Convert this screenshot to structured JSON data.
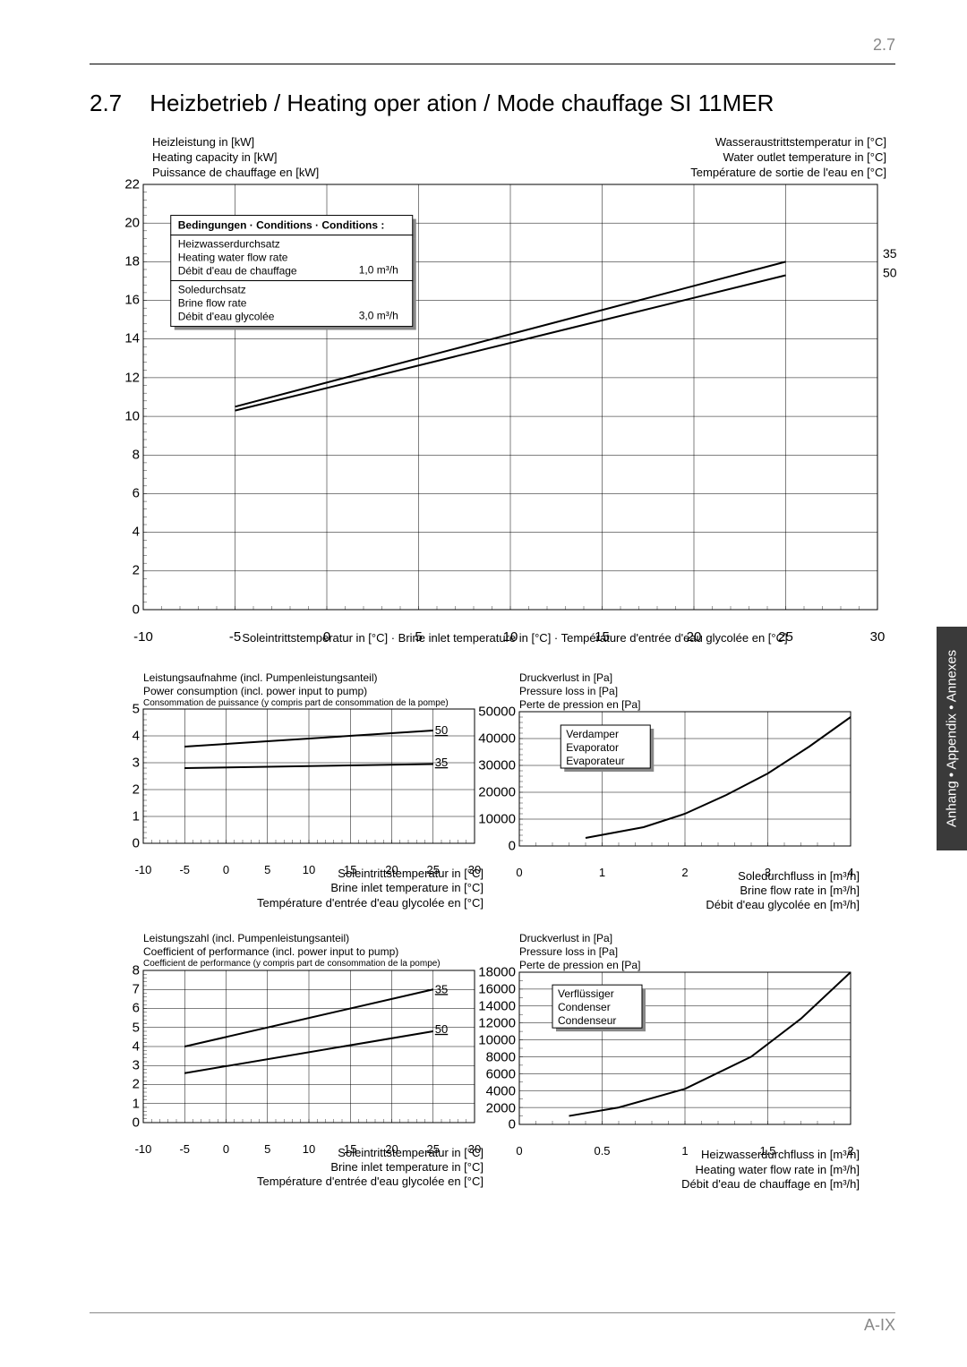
{
  "header_section_number": "2.7",
  "footer_page_number": "A-IX",
  "side_tab": "Anhang • Appendix • Annexes",
  "section": {
    "number": "2.7",
    "title": "Heizbetrieb / Heating oper   ation / Mode chauffage SI 11MER"
  },
  "big_chart": {
    "y_label_left": [
      "Heizleistung in [kW]",
      "Heating capacity in [kW]",
      "Puissance de chauffage en [kW]"
    ],
    "y_label_right": [
      "Wasseraustrittstemperatur in [°C]",
      "Water outlet temperature in [°C]",
      "Température de sortie de l'eau en [°C]"
    ],
    "x_label": "Soleintrittstemperatur in [°C] · Brine inlet temperature in [°C] · Température d'entrée d'eau glycolée en [°C]",
    "ylim": [
      0,
      22
    ],
    "ytick_step": 2,
    "xlim": [
      -10,
      30
    ],
    "xtick_step": 5,
    "series": [
      {
        "label": "35",
        "points": [
          [
            -5,
            10.5
          ],
          [
            25,
            18
          ]
        ]
      },
      {
        "label": "50",
        "points": [
          [
            -5,
            10.3
          ],
          [
            25,
            17.3
          ]
        ]
      }
    ],
    "conditions_box": {
      "title": "Bedingungen · Conditions · Conditions :",
      "rows": [
        {
          "labels": [
            "Heizwasserdurchsatz",
            "Heating water flow rate",
            "Débit d'eau de chauffage"
          ],
          "value": "1,0 m³/h"
        },
        {
          "labels": [
            "Soledurchsatz",
            "Brine flow rate",
            "Débit d'eau glycolée"
          ],
          "value": "3,0 m³/h"
        }
      ]
    }
  },
  "power_chart": {
    "title": [
      "Leistungsaufnahme (incl. Pumpenleistungsanteil)",
      "Power consumption (incl. power input to pump)",
      "Consommation de puissance (y compris part de consommation de la pompe)"
    ],
    "ylim": [
      0,
      5
    ],
    "ytick_step": 1,
    "xlim": [
      -10,
      30
    ],
    "xtick_step": 5,
    "x_axis_label": [
      "Soleintrittstemperatur in [°C]",
      "Brine inlet temperature in [°C]",
      "Température d'entrée d'eau glycolée en [°C]"
    ],
    "series": [
      {
        "label": "50",
        "points": [
          [
            -5,
            3.6
          ],
          [
            25,
            4.2
          ]
        ]
      },
      {
        "label": "35",
        "points": [
          [
            -5,
            2.8
          ],
          [
            25,
            2.95
          ]
        ]
      }
    ]
  },
  "evap_chart": {
    "title": [
      "Druckverlust in [Pa]",
      "Pressure loss in [Pa]",
      "Perte de pression en [Pa]"
    ],
    "ylim": [
      0,
      50000
    ],
    "ytick_step": 10000,
    "xlim": [
      0,
      4
    ],
    "xtick_step": 1,
    "x_axis_label": [
      "Soledurchfluss in [m³/h]",
      "Brine flow rate in [m³/h]",
      "Débit d'eau glycolée en [m³/h]"
    ],
    "legend": [
      "Verdamper",
      "Evaporator",
      "Evaporateur"
    ],
    "curve": [
      [
        0.8,
        3000
      ],
      [
        1.5,
        7000
      ],
      [
        2.0,
        12000
      ],
      [
        2.5,
        19000
      ],
      [
        3.0,
        27000
      ],
      [
        3.5,
        37000
      ],
      [
        4.0,
        48000
      ]
    ]
  },
  "cop_chart": {
    "title": [
      "Leistungszahl (incl. Pumpenleistungsanteil)",
      "Coefficient of performance (incl. power input to pump)",
      "Coefficient de performance (y compris part de consommation de la pompe)"
    ],
    "ylim": [
      0,
      8
    ],
    "ytick_step": 1,
    "xlim": [
      -10,
      30
    ],
    "xtick_step": 5,
    "x_axis_label": [
      "Soleintrittstemperatur in [°C]",
      "Brine inlet temperature in [°C]",
      "Température d'entrée d'eau glycolée en [°C]"
    ],
    "series": [
      {
        "label": "35",
        "points": [
          [
            -5,
            4.0
          ],
          [
            25,
            7.0
          ]
        ]
      },
      {
        "label": "50",
        "points": [
          [
            -5,
            2.6
          ],
          [
            25,
            4.8
          ]
        ]
      }
    ]
  },
  "cond_chart": {
    "title": [
      "Druckverlust in [Pa]",
      "Pressure loss in [Pa]",
      "Perte de pression en [Pa]"
    ],
    "ylim": [
      0,
      18000
    ],
    "ytick_step": 2000,
    "xlim": [
      0,
      2
    ],
    "xtick_step": 0.5,
    "x_axis_label": [
      "Heizwasserdurchfluss in [m³/h]",
      "Heating water flow rate in [m³/h]",
      "Débit d'eau de chauffage en [m³/h]"
    ],
    "legend": [
      "Verflüssiger",
      "Condenser",
      "Condenseur"
    ],
    "curve": [
      [
        0.3,
        1000
      ],
      [
        0.6,
        2000
      ],
      [
        1.0,
        4200
      ],
      [
        1.4,
        8000
      ],
      [
        1.7,
        12500
      ],
      [
        2.0,
        18000
      ]
    ]
  },
  "grid_color": "#000000",
  "background_color": "#ffffff"
}
